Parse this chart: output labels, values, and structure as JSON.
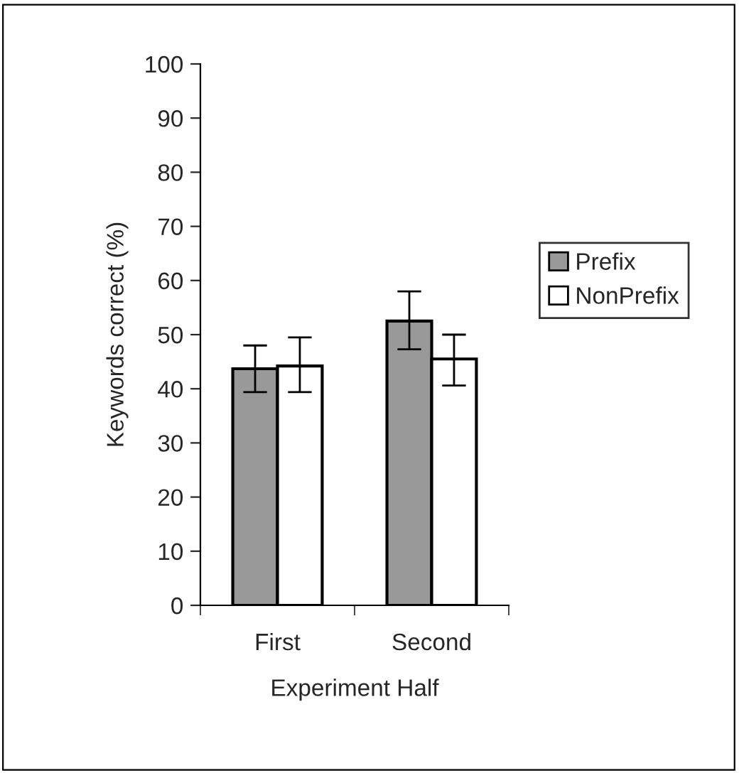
{
  "chart_data": {
    "type": "bar",
    "xlabel": "Experiment Half",
    "ylabel": "Keywords correct (%)",
    "categories": [
      "First",
      "Second"
    ],
    "series": [
      {
        "name": "Prefix",
        "color": "#999999",
        "values": [
          43.7,
          52.5
        ],
        "errors": [
          [
            39.4,
            48.0
          ],
          [
            47.3,
            58.0
          ]
        ]
      },
      {
        "name": "NonPrefix",
        "color": "#ffffff",
        "values": [
          44.2,
          45.5
        ],
        "errors": [
          [
            39.4,
            49.5
          ],
          [
            40.6,
            50.0
          ]
        ]
      }
    ],
    "ylim": [
      0,
      100
    ],
    "yticks": [
      0,
      10,
      20,
      30,
      40,
      50,
      60,
      70,
      80,
      90,
      100
    ],
    "grid": false,
    "legend": "right"
  }
}
